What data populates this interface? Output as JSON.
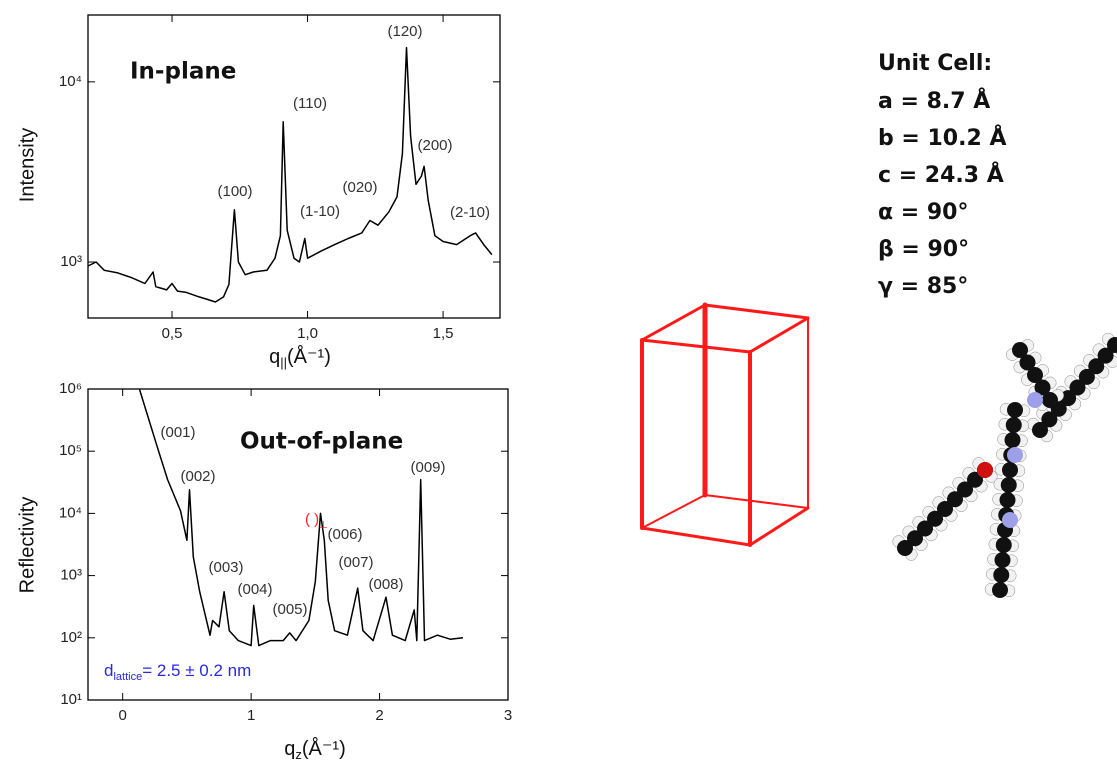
{
  "chart_data": [
    {
      "type": "line",
      "title": "In-plane",
      "y_label": "Intensity",
      "x_label": "q",
      "x_label_sub": "||",
      "x_label_unit": "(Å⁻¹)",
      "yscale": "log",
      "xlim": [
        0.19,
        1.71
      ],
      "ylim": [
        489,
        23500
      ],
      "xticks": [
        {
          "value": 0.5,
          "label": "0,5"
        },
        {
          "value": 1.0,
          "label": "1,0"
        },
        {
          "value": 1.5,
          "label": "1,5"
        }
      ],
      "yticks": [
        {
          "value": 1000,
          "label": "10³"
        },
        {
          "value": 10000,
          "label": "10⁴"
        }
      ],
      "annotations": [
        "(100)",
        "(110)",
        "(1-10)",
        "(020)",
        "(120)",
        "(200)",
        "(2-10)"
      ],
      "series": [
        {
          "color": "#000000",
          "x": [
            0.19,
            0.22,
            0.25,
            0.3,
            0.35,
            0.4,
            0.43,
            0.44,
            0.48,
            0.5,
            0.52,
            0.55,
            0.6,
            0.63,
            0.66,
            0.69,
            0.71,
            0.73,
            0.745,
            0.77,
            0.8,
            0.85,
            0.88,
            0.9,
            0.91,
            0.925,
            0.95,
            0.97,
            0.99,
            1.0,
            1.05,
            1.1,
            1.15,
            1.2,
            1.23,
            1.26,
            1.3,
            1.33,
            1.35,
            1.365,
            1.38,
            1.4,
            1.42,
            1.43,
            1.445,
            1.47,
            1.5,
            1.55,
            1.6,
            1.62,
            1.65,
            1.68
          ],
          "values": [
            950,
            1000,
            900,
            870,
            820,
            760,
            880,
            730,
            700,
            760,
            690,
            680,
            640,
            620,
            600,
            640,
            750,
            1950,
            1000,
            850,
            880,
            900,
            1050,
            1400,
            6000,
            1500,
            1050,
            1000,
            1350,
            1050,
            1150,
            1250,
            1350,
            1450,
            1700,
            1600,
            1900,
            2300,
            4000,
            15500,
            5000,
            2700,
            3000,
            3400,
            2200,
            1400,
            1300,
            1250,
            1400,
            1450,
            1250,
            1100
          ]
        }
      ]
    },
    {
      "type": "line",
      "title": "Out-of-plane",
      "y_label": "Reflectivity",
      "x_label": "q",
      "x_label_sub": "z",
      "x_label_unit": "(Å⁻¹)",
      "yscale": "log",
      "xlim": [
        -0.27,
        3
      ],
      "ylim": [
        10,
        1000000
      ],
      "xticks": [
        0,
        1,
        2,
        3
      ],
      "yticks": [
        {
          "value": 10,
          "label": "10¹"
        },
        {
          "value": 100,
          "label": "10²"
        },
        {
          "value": 1000,
          "label": "10³"
        },
        {
          "value": 10000,
          "label": "10⁴"
        },
        {
          "value": 100000,
          "label": "10⁵"
        },
        {
          "value": 1000000,
          "label": "10⁶"
        }
      ],
      "annotations": [
        "(001)",
        "(002)",
        "(003)",
        "(004)",
        "(005)",
        "(006)",
        "(007)",
        "(008)",
        "(009)"
      ],
      "red_annotation": "( )",
      "red_annotation_sub": "⊥",
      "d_note": "d",
      "d_note_sub": "lattice",
      "d_note_rest": "= 2.5 ± 0.2 nm",
      "series": [
        {
          "color": "#000000",
          "x": [
            0.13,
            0.28,
            0.35,
            0.45,
            0.5,
            0.52,
            0.55,
            0.6,
            0.68,
            0.7,
            0.75,
            0.79,
            0.83,
            0.9,
            1.0,
            1.02,
            1.06,
            1.15,
            1.25,
            1.3,
            1.35,
            1.45,
            1.5,
            1.54,
            1.57,
            1.6,
            1.65,
            1.75,
            1.83,
            1.87,
            1.95,
            2.05,
            2.1,
            2.2,
            2.27,
            2.29,
            2.32,
            2.35,
            2.45,
            2.55,
            2.65
          ],
          "values": [
            1000000,
            100000,
            35000,
            11000,
            3700,
            24000,
            2000,
            550,
            110,
            190,
            150,
            550,
            130,
            90,
            75,
            330,
            75,
            90,
            90,
            120,
            90,
            190,
            800,
            10000,
            3700,
            400,
            130,
            110,
            630,
            130,
            90,
            450,
            110,
            90,
            280,
            90,
            35000,
            90,
            110,
            95,
            100
          ]
        }
      ]
    }
  ],
  "unit_cell": {
    "title": "Unit Cell:",
    "lines": [
      "a = 8.7 Å",
      "b = 10.2 Å",
      "c = 24.3 Å",
      "α = 90°",
      "β = 90°",
      "γ = 85°"
    ]
  }
}
